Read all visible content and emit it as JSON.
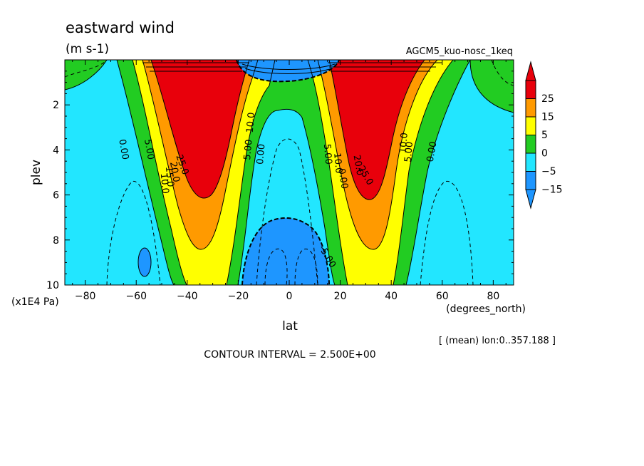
{
  "chart_data": {
    "type": "contour",
    "title": "eastward wind",
    "units": "(m s-1)",
    "model_label": "AGCM5_kuo-nosc_1keq",
    "xlabel": "lat",
    "x_unit": "(degrees_north)",
    "ylabel": "plev",
    "y_unit": "(x1E4 Pa)",
    "xlim": [
      -88,
      88
    ],
    "ylim": [
      10,
      0
    ],
    "y_axis_inverted": true,
    "x_ticks": [
      -80,
      -60,
      -40,
      -20,
      0,
      20,
      40,
      60,
      80
    ],
    "x_tick_labels": [
      "−80",
      "−60",
      "−40",
      "−20",
      "0",
      "20",
      "40",
      "60",
      "80"
    ],
    "y_ticks": [
      2,
      4,
      6,
      8,
      10
    ],
    "y_tick_labels": [
      "2",
      "4",
      "6",
      "8",
      "10"
    ],
    "averaging_note": "[ (mean) lon:0..357.188 ]",
    "contour_interval_text": "CONTOUR INTERVAL = 2.500E+00",
    "colorbar": {
      "labels": [
        "25",
        "15",
        "5",
        "0",
        "−5",
        "−15"
      ],
      "colors": [
        "#e8000b",
        "#ff9a00",
        "#ffff00",
        "#22cc22",
        "#22e6ff",
        "#1e96ff"
      ]
    },
    "contour_labels": [
      {
        "text": "0.00",
        "lat": -66,
        "plev": 4.0,
        "angle": 80
      },
      {
        "text": "5.00",
        "lat": -56,
        "plev": 4.0,
        "angle": 80
      },
      {
        "text": "10.0",
        "lat": -50,
        "plev": 5.5,
        "angle": 85
      },
      {
        "text": "15.0",
        "lat": -48,
        "plev": 5.2,
        "angle": 85
      },
      {
        "text": "20.0",
        "lat": -46,
        "plev": 5.0,
        "angle": 80
      },
      {
        "text": "25.0",
        "lat": -43,
        "plev": 4.7,
        "angle": 70
      },
      {
        "text": "5.00",
        "lat": -15,
        "plev": 4.0,
        "angle": -85
      },
      {
        "text": "0.00",
        "lat": -10,
        "plev": 4.2,
        "angle": -85
      },
      {
        "text": "10.0",
        "lat": -14,
        "plev": 2.8,
        "angle": -85
      },
      {
        "text": "5.00",
        "lat": 14,
        "plev": 4.2,
        "angle": 85
      },
      {
        "text": "10.0",
        "lat": 18,
        "plev": 4.6,
        "angle": 85
      },
      {
        "text": "0.00",
        "lat": 20,
        "plev": 5.3,
        "angle": 80
      },
      {
        "text": "20.0",
        "lat": 26,
        "plev": 4.7,
        "angle": 80
      },
      {
        "text": "25.0",
        "lat": 29,
        "plev": 5.2,
        "angle": 60
      },
      {
        "text": "10.0",
        "lat": 46,
        "plev": 3.7,
        "angle": -85
      },
      {
        "text": "5.00",
        "lat": 48,
        "plev": 4.1,
        "angle": -85
      },
      {
        "text": "0.00",
        "lat": 57,
        "plev": 4.1,
        "angle": -80
      },
      {
        "text": "-5.00",
        "lat": 14,
        "plev": 8.8,
        "angle": 60
      }
    ]
  }
}
